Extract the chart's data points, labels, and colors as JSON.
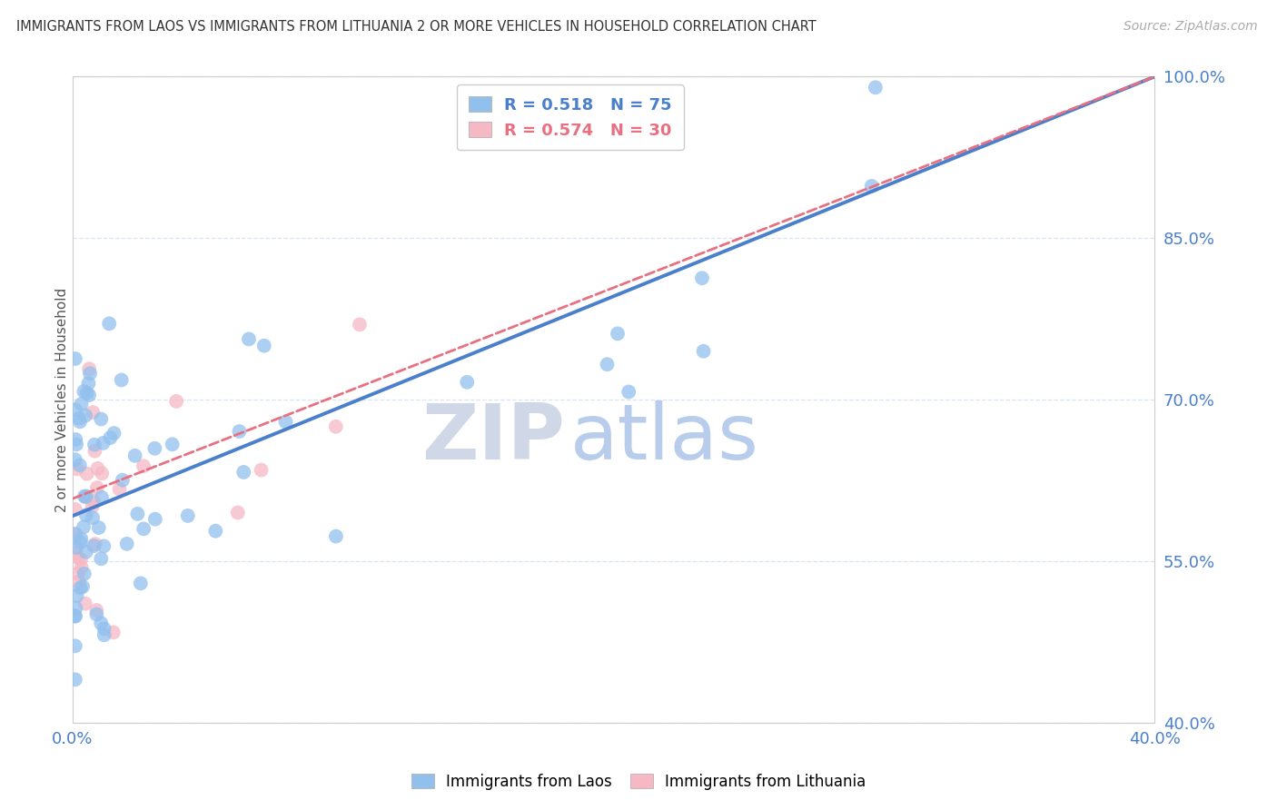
{
  "title": "IMMIGRANTS FROM LAOS VS IMMIGRANTS FROM LITHUANIA 2 OR MORE VEHICLES IN HOUSEHOLD CORRELATION CHART",
  "source": "Source: ZipAtlas.com",
  "ylabel": "2 or more Vehicles in Household",
  "xlim": [
    0.0,
    0.4
  ],
  "ylim": [
    0.4,
    1.0
  ],
  "xticks": [
    0.0,
    0.05,
    0.1,
    0.15,
    0.2,
    0.25,
    0.3,
    0.35,
    0.4
  ],
  "yticks": [
    0.4,
    0.55,
    0.7,
    0.85,
    1.0
  ],
  "yticklabels": [
    "40.0%",
    "55.0%",
    "70.0%",
    "85.0%",
    "100.0%"
  ],
  "laos_color": "#92c0ed",
  "lithuania_color": "#f5b8c4",
  "laos_line_color": "#4a7fcb",
  "lithuania_line_color": "#e87080",
  "R_laos": 0.518,
  "N_laos": 75,
  "R_lithuania": 0.574,
  "N_lithuania": 30,
  "watermark_zip": "ZIP",
  "watermark_atlas": "atlas",
  "watermark_zip_color": "#d0d8e8",
  "watermark_atlas_color": "#b8ccec",
  "grid_color": "#d8e4f0",
  "laos_slope": 1.02,
  "laos_intercept": 0.592,
  "lith_slope": 0.98,
  "lith_intercept": 0.608
}
